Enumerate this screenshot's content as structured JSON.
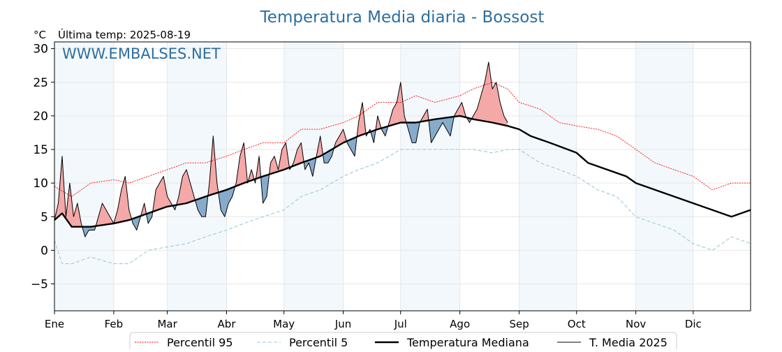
{
  "chart_data": {
    "type": "line",
    "title": "Temperatura Media diaria - Bossost",
    "unit_label": "°C",
    "subtitle": "Última temp: 2025-08-19",
    "watermark": "WWW.EMBALSES.NET",
    "x_axis": {
      "type": "day_of_year",
      "range": [
        1,
        365
      ]
    },
    "month_ticks": [
      {
        "label": "Ene",
        "day": 1
      },
      {
        "label": "Feb",
        "day": 32
      },
      {
        "label": "Mar",
        "day": 60
      },
      {
        "label": "Abr",
        "day": 91
      },
      {
        "label": "May",
        "day": 121
      },
      {
        "label": "Jun",
        "day": 152
      },
      {
        "label": "Jul",
        "day": 182
      },
      {
        "label": "Ago",
        "day": 213
      },
      {
        "label": "Sep",
        "day": 244
      },
      {
        "label": "Oct",
        "day": 274
      },
      {
        "label": "Nov",
        "day": 305
      },
      {
        "label": "Dic",
        "day": 335
      }
    ],
    "shaded_months": [
      [
        1,
        32
      ],
      [
        60,
        91
      ],
      [
        121,
        152
      ],
      [
        182,
        213
      ],
      [
        244,
        274
      ],
      [
        305,
        335
      ]
    ],
    "ylim": [
      -9,
      31
    ],
    "yticks": [
      -5,
      0,
      5,
      10,
      15,
      20,
      25,
      30
    ],
    "grid": true,
    "legend": "bottom-center",
    "fill_above_color": "#f4a3a3",
    "fill_below_color": "#7fa7c9",
    "series": [
      {
        "name": "Percentil 95",
        "style": "dotted",
        "color": "#ff0000",
        "points": [
          [
            1,
            9.5
          ],
          [
            10,
            8
          ],
          [
            20,
            10
          ],
          [
            32,
            10.5
          ],
          [
            40,
            10
          ],
          [
            50,
            11
          ],
          [
            60,
            12
          ],
          [
            70,
            13
          ],
          [
            80,
            13
          ],
          [
            91,
            14
          ],
          [
            100,
            15
          ],
          [
            110,
            16
          ],
          [
            121,
            16
          ],
          [
            130,
            18
          ],
          [
            140,
            18
          ],
          [
            152,
            19
          ],
          [
            160,
            20
          ],
          [
            170,
            22
          ],
          [
            182,
            22
          ],
          [
            190,
            23
          ],
          [
            200,
            22
          ],
          [
            213,
            23
          ],
          [
            220,
            24
          ],
          [
            230,
            25
          ],
          [
            238,
            24
          ],
          [
            244,
            22
          ],
          [
            255,
            21
          ],
          [
            265,
            19
          ],
          [
            274,
            18.5
          ],
          [
            285,
            18
          ],
          [
            295,
            17
          ],
          [
            305,
            15
          ],
          [
            315,
            13
          ],
          [
            325,
            12
          ],
          [
            335,
            11
          ],
          [
            345,
            9
          ],
          [
            355,
            10
          ],
          [
            365,
            10
          ]
        ]
      },
      {
        "name": "Percentil 5",
        "style": "dashed",
        "color": "#9bcad8",
        "points": [
          [
            1,
            1.5
          ],
          [
            5,
            -2
          ],
          [
            10,
            -2
          ],
          [
            20,
            -1
          ],
          [
            32,
            -2
          ],
          [
            40,
            -2
          ],
          [
            50,
            0
          ],
          [
            60,
            0.5
          ],
          [
            70,
            1
          ],
          [
            80,
            2
          ],
          [
            91,
            3
          ],
          [
            100,
            4
          ],
          [
            110,
            5
          ],
          [
            121,
            6
          ],
          [
            130,
            8
          ],
          [
            140,
            9
          ],
          [
            152,
            11
          ],
          [
            160,
            12
          ],
          [
            170,
            13
          ],
          [
            182,
            15
          ],
          [
            190,
            15
          ],
          [
            200,
            15
          ],
          [
            213,
            15
          ],
          [
            220,
            15
          ],
          [
            230,
            14.5
          ],
          [
            238,
            15
          ],
          [
            244,
            15
          ],
          [
            255,
            13
          ],
          [
            265,
            12
          ],
          [
            274,
            11
          ],
          [
            285,
            9
          ],
          [
            295,
            8
          ],
          [
            305,
            5
          ],
          [
            315,
            4
          ],
          [
            325,
            3
          ],
          [
            335,
            1
          ],
          [
            345,
            0
          ],
          [
            355,
            2
          ],
          [
            365,
            1
          ]
        ]
      },
      {
        "name": "Temperatura Mediana",
        "style": "solid-thick",
        "color": "#000000",
        "points": [
          [
            1,
            4.5
          ],
          [
            5,
            5.5
          ],
          [
            10,
            3.5
          ],
          [
            20,
            3.5
          ],
          [
            32,
            4
          ],
          [
            40,
            4.5
          ],
          [
            50,
            5.5
          ],
          [
            60,
            6.5
          ],
          [
            70,
            7
          ],
          [
            80,
            8
          ],
          [
            91,
            9
          ],
          [
            100,
            10
          ],
          [
            110,
            11
          ],
          [
            121,
            12
          ],
          [
            130,
            13
          ],
          [
            140,
            14
          ],
          [
            152,
            16
          ],
          [
            160,
            17
          ],
          [
            170,
            18
          ],
          [
            182,
            19
          ],
          [
            190,
            19
          ],
          [
            200,
            19.5
          ],
          [
            213,
            20
          ],
          [
            220,
            19.5
          ],
          [
            230,
            19
          ],
          [
            238,
            18.5
          ],
          [
            244,
            18
          ],
          [
            250,
            17
          ],
          [
            260,
            16
          ],
          [
            274,
            14.5
          ],
          [
            280,
            13
          ],
          [
            290,
            12
          ],
          [
            300,
            11
          ],
          [
            305,
            10
          ],
          [
            315,
            9
          ],
          [
            325,
            8
          ],
          [
            335,
            7
          ],
          [
            345,
            6
          ],
          [
            355,
            5
          ],
          [
            365,
            6
          ]
        ]
      },
      {
        "name": "T. Media 2025",
        "style": "solid-thin",
        "color": "#000000",
        "points": [
          [
            1,
            4.5
          ],
          [
            3,
            7
          ],
          [
            5,
            14
          ],
          [
            7,
            5
          ],
          [
            9,
            10
          ],
          [
            11,
            5
          ],
          [
            13,
            7
          ],
          [
            15,
            4
          ],
          [
            17,
            2
          ],
          [
            19,
            3
          ],
          [
            22,
            3
          ],
          [
            24,
            5
          ],
          [
            26,
            7
          ],
          [
            28,
            6
          ],
          [
            30,
            5
          ],
          [
            32,
            4
          ],
          [
            34,
            6
          ],
          [
            36,
            9
          ],
          [
            38,
            11
          ],
          [
            40,
            6
          ],
          [
            42,
            4
          ],
          [
            44,
            3
          ],
          [
            46,
            5
          ],
          [
            48,
            7
          ],
          [
            50,
            4
          ],
          [
            52,
            5
          ],
          [
            54,
            9
          ],
          [
            56,
            10
          ],
          [
            58,
            11
          ],
          [
            60,
            8
          ],
          [
            62,
            7
          ],
          [
            64,
            6
          ],
          [
            66,
            8
          ],
          [
            68,
            11
          ],
          [
            70,
            12
          ],
          [
            72,
            10
          ],
          [
            74,
            8
          ],
          [
            76,
            6
          ],
          [
            78,
            5
          ],
          [
            80,
            5
          ],
          [
            82,
            10
          ],
          [
            84,
            17
          ],
          [
            86,
            10
          ],
          [
            88,
            6
          ],
          [
            90,
            5
          ],
          [
            92,
            7
          ],
          [
            94,
            8
          ],
          [
            96,
            10
          ],
          [
            98,
            14
          ],
          [
            100,
            16
          ],
          [
            102,
            10
          ],
          [
            104,
            12
          ],
          [
            106,
            10
          ],
          [
            108,
            14
          ],
          [
            110,
            7
          ],
          [
            112,
            8
          ],
          [
            114,
            13
          ],
          [
            116,
            14
          ],
          [
            118,
            12
          ],
          [
            120,
            15
          ],
          [
            122,
            16
          ],
          [
            124,
            12
          ],
          [
            126,
            13
          ],
          [
            128,
            15
          ],
          [
            130,
            16
          ],
          [
            132,
            12
          ],
          [
            134,
            13
          ],
          [
            136,
            11
          ],
          [
            138,
            14
          ],
          [
            140,
            17
          ],
          [
            142,
            13
          ],
          [
            144,
            13
          ],
          [
            146,
            14
          ],
          [
            148,
            16
          ],
          [
            150,
            17
          ],
          [
            152,
            18
          ],
          [
            154,
            16
          ],
          [
            156,
            15
          ],
          [
            158,
            14
          ],
          [
            160,
            19
          ],
          [
            162,
            22
          ],
          [
            164,
            17
          ],
          [
            166,
            18
          ],
          [
            168,
            16
          ],
          [
            170,
            20
          ],
          [
            172,
            18
          ],
          [
            174,
            17
          ],
          [
            176,
            19
          ],
          [
            178,
            21
          ],
          [
            180,
            22
          ],
          [
            182,
            25
          ],
          [
            184,
            20
          ],
          [
            186,
            18
          ],
          [
            188,
            16
          ],
          [
            190,
            16
          ],
          [
            192,
            19
          ],
          [
            194,
            20
          ],
          [
            196,
            21
          ],
          [
            198,
            16
          ],
          [
            200,
            17
          ],
          [
            202,
            18
          ],
          [
            204,
            19
          ],
          [
            206,
            18
          ],
          [
            208,
            17
          ],
          [
            210,
            20
          ],
          [
            212,
            21
          ],
          [
            214,
            22
          ],
          [
            216,
            20
          ],
          [
            218,
            19
          ],
          [
            220,
            20
          ],
          [
            222,
            21
          ],
          [
            224,
            23
          ],
          [
            226,
            25
          ],
          [
            228,
            28
          ],
          [
            230,
            24
          ],
          [
            232,
            25
          ],
          [
            234,
            22
          ],
          [
            236,
            20
          ],
          [
            238,
            19
          ]
        ]
      }
    ]
  }
}
